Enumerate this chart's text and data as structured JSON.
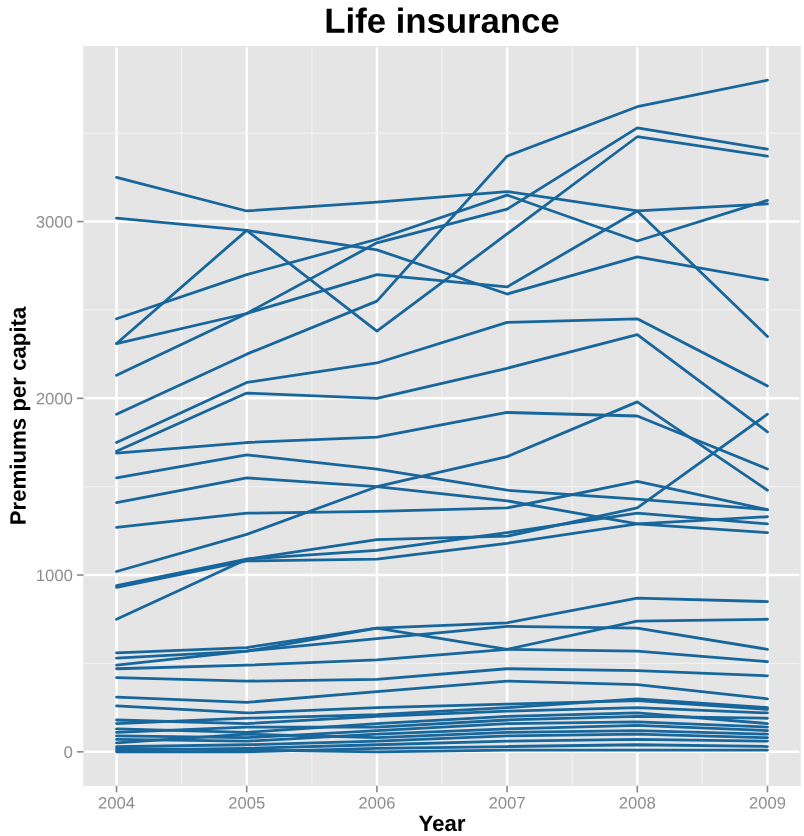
{
  "chart_data": {
    "type": "line",
    "title": "Life insurance",
    "xlabel": "Year",
    "ylabel": "Premiums per capita",
    "x": [
      2004,
      2005,
      2006,
      2007,
      2008,
      2009
    ],
    "xlim": [
      2003.75,
      2009.25
    ],
    "xticks": [
      2004,
      2005,
      2006,
      2007,
      2008,
      2009
    ],
    "ylim": [
      -190,
      3990
    ],
    "yticks": [
      0,
      1000,
      2000,
      3000
    ],
    "grid": true,
    "series": [
      {
        "color": "#17669c",
        "values": [
          1910,
          2250,
          2550,
          3370,
          3650,
          3800
        ]
      },
      {
        "color": "#17669c",
        "values": [
          2310,
          2480,
          2880,
          3070,
          3530,
          3410
        ]
      },
      {
        "color": "#17669c",
        "values": [
          2310,
          2950,
          2380,
          2930,
          3480,
          3370
        ]
      },
      {
        "color": "#17669c",
        "values": [
          3250,
          3060,
          3110,
          3170,
          3060,
          2350
        ]
      },
      {
        "color": "#17669c",
        "values": [
          3020,
          2950,
          2840,
          2590,
          2800,
          2670
        ]
      },
      {
        "color": "#17669c",
        "values": [
          2450,
          2700,
          2900,
          3150,
          2890,
          3120
        ]
      },
      {
        "color": "#17669c",
        "values": [
          2130,
          2480,
          2700,
          2630,
          3060,
          3100
        ]
      },
      {
        "color": "#17669c",
        "values": [
          1750,
          2090,
          2200,
          2430,
          2450,
          2070
        ]
      },
      {
        "color": "#17669c",
        "values": [
          1700,
          2030,
          2000,
          2170,
          2360,
          1810
        ]
      },
      {
        "color": "#17669c",
        "values": [
          1690,
          1750,
          1780,
          1920,
          1900,
          1600
        ]
      },
      {
        "color": "#17669c",
        "values": [
          1550,
          1680,
          1600,
          1480,
          1430,
          1370
        ]
      },
      {
        "color": "#17669c",
        "values": [
          1410,
          1550,
          1500,
          1420,
          1290,
          1240
        ]
      },
      {
        "color": "#17669c",
        "values": [
          1270,
          1350,
          1360,
          1380,
          1530,
          1370
        ]
      },
      {
        "color": "#17669c",
        "values": [
          1020,
          1230,
          1500,
          1670,
          1980,
          1480
        ]
      },
      {
        "color": "#17669c",
        "values": [
          940,
          1090,
          1140,
          1240,
          1350,
          1290
        ]
      },
      {
        "color": "#17669c",
        "values": [
          930,
          1080,
          1090,
          1180,
          1290,
          1330
        ]
      },
      {
        "color": "#17669c",
        "values": [
          750,
          1090,
          1200,
          1220,
          1380,
          1910
        ]
      },
      {
        "color": "#17669c",
        "values": [
          560,
          590,
          700,
          730,
          870,
          850
        ]
      },
      {
        "color": "#17669c",
        "values": [
          530,
          570,
          700,
          580,
          740,
          750
        ]
      },
      {
        "color": "#17669c",
        "values": [
          490,
          570,
          640,
          710,
          700,
          580
        ]
      },
      {
        "color": "#17669c",
        "values": [
          470,
          490,
          520,
          580,
          570,
          510
        ]
      },
      {
        "color": "#17669c",
        "values": [
          420,
          400,
          410,
          470,
          460,
          430
        ]
      },
      {
        "color": "#17669c",
        "values": [
          310,
          280,
          340,
          400,
          380,
          300
        ]
      },
      {
        "color": "#17669c",
        "values": [
          260,
          220,
          250,
          270,
          290,
          240
        ]
      },
      {
        "color": "#17669c",
        "values": [
          180,
          160,
          200,
          230,
          250,
          220
        ]
      },
      {
        "color": "#17669c",
        "values": [
          160,
          190,
          210,
          250,
          300,
          250
        ]
      },
      {
        "color": "#17669c",
        "values": [
          130,
          110,
          160,
          200,
          220,
          160
        ]
      },
      {
        "color": "#17669c",
        "values": [
          110,
          140,
          140,
          180,
          200,
          190
        ]
      },
      {
        "color": "#17669c",
        "values": [
          90,
          80,
          120,
          160,
          170,
          140
        ]
      },
      {
        "color": "#17669c",
        "values": [
          70,
          60,
          100,
          130,
          150,
          120
        ]
      },
      {
        "color": "#17669c",
        "values": [
          50,
          100,
          80,
          110,
          120,
          100
        ]
      },
      {
        "color": "#17669c",
        "values": [
          30,
          40,
          60,
          90,
          100,
          80
        ]
      },
      {
        "color": "#17669c",
        "values": [
          10,
          20,
          40,
          60,
          70,
          60
        ]
      },
      {
        "color": "#17669c",
        "values": [
          0,
          0,
          20,
          30,
          40,
          30
        ]
      },
      {
        "color": "#17669c",
        "values": [
          20,
          10,
          0,
          10,
          10,
          10
        ]
      }
    ]
  }
}
